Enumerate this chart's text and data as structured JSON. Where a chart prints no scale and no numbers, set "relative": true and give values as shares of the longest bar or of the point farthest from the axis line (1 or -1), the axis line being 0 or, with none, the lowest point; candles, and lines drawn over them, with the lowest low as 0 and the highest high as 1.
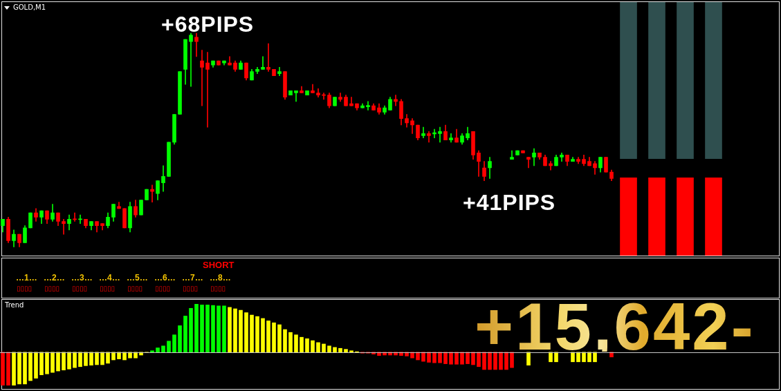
{
  "chart_data": [
    {
      "type": "candlestick",
      "title": "GOLD,M1",
      "relative": true,
      "categories": [
        null,
        null,
        null,
        null,
        null,
        null,
        null,
        null,
        null,
        null,
        null,
        null,
        null,
        null,
        null,
        null,
        null,
        null,
        null,
        null,
        null,
        null,
        null,
        null,
        null,
        null,
        null,
        null,
        null,
        null,
        null,
        null,
        null,
        null,
        null,
        null,
        null,
        null,
        null,
        null,
        null,
        null,
        null,
        null,
        null,
        null,
        null,
        null,
        null,
        null,
        null,
        null,
        null,
        null,
        null,
        null,
        null,
        null,
        null,
        null,
        null,
        null,
        null,
        null,
        null,
        null,
        null,
        null,
        null,
        null,
        null,
        null,
        null,
        null,
        null,
        null,
        null,
        null,
        null,
        null,
        null,
        null,
        null,
        null,
        null,
        null,
        null,
        null,
        null,
        null,
        null,
        null,
        null,
        null,
        null,
        null,
        null,
        null,
        null,
        null,
        null,
        null,
        null,
        null,
        null,
        null,
        null,
        null,
        null,
        null,
        null
      ],
      "ohlc": [
        [
          0.1,
          0.13,
          0.07,
          0.13
        ],
        [
          0.13,
          0.14,
          0.02,
          0.03
        ],
        [
          0.03,
          0.08,
          0,
          0.06
        ],
        [
          0.06,
          0.06,
          0,
          0.02
        ],
        [
          0.02,
          0.1,
          0.02,
          0.09
        ],
        [
          0.09,
          0.16,
          0.09,
          0.16
        ],
        [
          0.16,
          0.18,
          0.12,
          0.14
        ],
        [
          0.14,
          0.17,
          0.11,
          0.17
        ],
        [
          0.17,
          0.17,
          0.11,
          0.13
        ],
        [
          0.13,
          0.2,
          0.12,
          0.16
        ],
        [
          0.16,
          0.16,
          0.1,
          0.12
        ],
        [
          0.12,
          0.13,
          0.06,
          0.11
        ],
        [
          0.11,
          0.15,
          0.08,
          0.13
        ],
        [
          0.132,
          0.16,
          0.12,
          0.128
        ],
        [
          0.128,
          0.15,
          0.11,
          0.132
        ],
        [
          0.13,
          0.13,
          0.09,
          0.1
        ],
        [
          0.1,
          0.12,
          0.08,
          0.12
        ],
        [
          0.12,
          0.12,
          0.07,
          0.1
        ],
        [
          0.11,
          0.11,
          0.08,
          0.1
        ],
        [
          0.1,
          0.16,
          0.09,
          0.14
        ],
        [
          0.14,
          0.2,
          0.12,
          0.2
        ],
        [
          0.19,
          0.21,
          0.18,
          0.18
        ],
        [
          0.18,
          0.18,
          0.09,
          0.09
        ],
        [
          0.09,
          0.21,
          0.07,
          0.19
        ],
        [
          0.19,
          0.22,
          0.14,
          0.15
        ],
        [
          0.15,
          0.22,
          0.15,
          0.22
        ],
        [
          0.22,
          0.27,
          0.22,
          0.27
        ],
        [
          0.27,
          0.29,
          0.21,
          0.26
        ],
        [
          0.25,
          0.31,
          0.22,
          0.31
        ],
        [
          0.3,
          0.38,
          0.26,
          0.33
        ],
        [
          0.33,
          0.49,
          0.33,
          0.49
        ],
        [
          0.49,
          0.62,
          0.48,
          0.62
        ],
        [
          0.62,
          0.82,
          0.62,
          0.82
        ],
        [
          0.83,
          0.97,
          0.76,
          0.97
        ],
        [
          0.96,
          1.0,
          0.75,
          0.99
        ],
        [
          0.98,
          1.0,
          0.89,
          0.96
        ],
        [
          0.87,
          0.92,
          0.66,
          0.84
        ],
        [
          0.86,
          0.91,
          0.56,
          0.83
        ],
        [
          0.85,
          0.87,
          0.84,
          0.87
        ],
        [
          0.87,
          0.87,
          0.85,
          0.85
        ],
        [
          0.86,
          0.87,
          0.85,
          0.87
        ],
        [
          0.86,
          0.89,
          0.85,
          0.85
        ],
        [
          0.86,
          0.87,
          0.82,
          0.83
        ],
        [
          0.83,
          0.87,
          0.83,
          0.86
        ],
        [
          0.86,
          0.86,
          0.78,
          0.79
        ],
        [
          0.78,
          0.83,
          0.78,
          0.82
        ],
        [
          0.82,
          0.84,
          0.81,
          0.83
        ],
        [
          0.83,
          0.89,
          0.83,
          0.84
        ],
        [
          0.84,
          0.95,
          0.82,
          0.83
        ],
        [
          0.83,
          0.83,
          0.8,
          0.8
        ],
        [
          0.81,
          0.84,
          0.8,
          0.82
        ],
        [
          0.82,
          0.82,
          0.69,
          0.7
        ],
        [
          0.71,
          0.73,
          0.71,
          0.73
        ],
        [
          0.72,
          0.73,
          0.68,
          0.73
        ],
        [
          0.73,
          0.75,
          0.72,
          0.72
        ],
        [
          0.71,
          0.73,
          0.71,
          0.73
        ],
        [
          0.73,
          0.76,
          0.72,
          0.72
        ],
        [
          0.72,
          0.74,
          0.7,
          0.71
        ],
        [
          0.712,
          0.72,
          0.69,
          0.708
        ],
        [
          0.71,
          0.72,
          0.65,
          0.66
        ],
        [
          0.66,
          0.7,
          0.66,
          0.7
        ],
        [
          0.7,
          0.72,
          0.68,
          0.69
        ],
        [
          0.7,
          0.71,
          0.66,
          0.66
        ],
        [
          0.67,
          0.7,
          0.66,
          0.66
        ],
        [
          0.67,
          0.67,
          0.64,
          0.65
        ],
        [
          0.65,
          0.67,
          0.65,
          0.66
        ],
        [
          0.655,
          0.68,
          0.64,
          0.662
        ],
        [
          0.66,
          0.67,
          0.64,
          0.64
        ],
        [
          0.65,
          0.67,
          0.62,
          0.63
        ],
        [
          0.63,
          0.66,
          0.62,
          0.65
        ],
        [
          0.64,
          0.7,
          0.64,
          0.69
        ],
        [
          0.69,
          0.71,
          0.66,
          0.68
        ],
        [
          0.68,
          0.69,
          0.57,
          0.6
        ],
        [
          0.6,
          0.62,
          0.56,
          0.58
        ],
        [
          0.59,
          0.6,
          0.53,
          0.57
        ],
        [
          0.57,
          0.57,
          0.5,
          0.51
        ],
        [
          0.52,
          0.56,
          0.51,
          0.53
        ],
        [
          0.53,
          0.54,
          0.49,
          0.52
        ],
        [
          0.528,
          0.55,
          0.51,
          0.534
        ],
        [
          0.53,
          0.56,
          0.49,
          0.54
        ],
        [
          0.54,
          0.57,
          0.5,
          0.5
        ],
        [
          0.5,
          0.53,
          0.49,
          0.51
        ],
        [
          0.51,
          0.55,
          0.49,
          0.49
        ],
        [
          0.49,
          0.53,
          0.48,
          0.52
        ],
        [
          0.51,
          0.56,
          0.5,
          0.53
        ],
        [
          0.54,
          0.54,
          0.41,
          0.43
        ],
        [
          0.44,
          0.45,
          0.33,
          0.4
        ],
        [
          0.37,
          0.4,
          0.31,
          0.33
        ],
        [
          0.37,
          0.42,
          0.32,
          0.4
        ],
        null,
        null,
        null,
        [
          0.41,
          0.45,
          0.41,
          0.42
        ],
        [
          0.43,
          0.45,
          0.43,
          0.45
        ],
        [
          0.45,
          0.45,
          0.44,
          0.44
        ],
        [
          0.42,
          0.42,
          0.37,
          0.41
        ],
        [
          0.42,
          0.46,
          0.38,
          0.44
        ],
        [
          0.44,
          0.44,
          0.41,
          0.42
        ],
        [
          0.42,
          0.43,
          0.38,
          0.38
        ],
        [
          0.39,
          0.4,
          0.36,
          0.38
        ],
        [
          0.38,
          0.43,
          0.38,
          0.42
        ],
        [
          0.42,
          0.44,
          0.4,
          0.43
        ],
        [
          0.43,
          0.43,
          0.38,
          0.4
        ],
        [
          0.4,
          0.42,
          0.4,
          0.41
        ],
        [
          0.41,
          0.42,
          0.39,
          0.4
        ],
        [
          0.41,
          0.43,
          0.38,
          0.39
        ],
        [
          0.4,
          0.42,
          0.38,
          0.38
        ],
        [
          0.39,
          0.4,
          0.34,
          0.37
        ],
        [
          0.37,
          0.42,
          0.35,
          0.42
        ],
        [
          0.42,
          0.42,
          0.35,
          0.35
        ],
        [
          0.35,
          0.36,
          0.31,
          0.32
        ]
      ],
      "colors": [
        "#00ff00",
        "#ff0000",
        "#00ff00",
        "#ff0000",
        "#00ff00",
        "#00ff00",
        "#ff0000",
        "#00ff00",
        "#ff0000",
        "#00ff00",
        "#ff0000",
        "#ff0000",
        "#00ff00",
        "#ff0000",
        "#00ff00",
        "#ff0000",
        "#00ff00",
        "#ff0000",
        "#ff0000",
        "#00ff00",
        "#00ff00",
        "#ff0000",
        "#ff0000",
        "#00ff00",
        "#ff0000",
        "#00ff00",
        "#00ff00",
        "#ff0000",
        "#00ff00",
        "#00ff00",
        "#00ff00",
        "#00ff00",
        "#00ff00",
        "#00ff00",
        "#00ff00",
        "#ff0000",
        "#ff0000",
        "#ff0000",
        "#00ff00",
        "#ff0000",
        "#00ff00",
        "#ff0000",
        "#ff0000",
        "#00ff00",
        "#ff0000",
        "#00ff00",
        "#00ff00",
        "#00ff00",
        "#ff0000",
        "#ff0000",
        "#00ff00",
        "#ff0000",
        "#00ff00",
        "#00ff00",
        "#ff0000",
        "#00ff00",
        "#ff0000",
        "#ff0000",
        "#ff0000",
        "#ff0000",
        "#00ff00",
        "#ff0000",
        "#ff0000",
        "#ff0000",
        "#ff0000",
        "#00ff00",
        "#00ff00",
        "#ff0000",
        "#ff0000",
        "#00ff00",
        "#00ff00",
        "#ff0000",
        "#ff0000",
        "#ff0000",
        "#ff0000",
        "#ff0000",
        "#00ff00",
        "#ff0000",
        "#00ff00",
        "#00ff00",
        "#ff0000",
        "#00ff00",
        "#ff0000",
        "#00ff00",
        "#00ff00",
        "#ff0000",
        "#ff0000",
        "#ff0000",
        "#00ff00",
        null,
        null,
        null,
        "#00ff00",
        "#00ff00",
        "#ff0000",
        "#ff0000",
        "#00ff00",
        "#ff0000",
        "#ff0000",
        "#ff0000",
        "#00ff00",
        "#00ff00",
        "#ff0000",
        "#00ff00",
        "#ff0000",
        "#ff0000",
        "#ff0000",
        "#ff0000",
        "#00ff00",
        "#ff0000",
        "#ff0000"
      ],
      "annotations": [
        "+68PIPS",
        "+41PIPS"
      ]
    },
    {
      "type": "bar",
      "relative": true,
      "categories": [
        null,
        null,
        null,
        null
      ],
      "color": "#2f4f4f",
      "values": [
        1,
        1,
        1,
        1
      ]
    },
    {
      "type": "bar",
      "relative": true,
      "categories": [
        null,
        null,
        null,
        null
      ],
      "color": "#ff0000",
      "values": [
        1,
        1,
        1,
        1
      ]
    },
    {
      "type": "other",
      "annotations": [
        "SHORT",
        "…1… …2… …3… …4… …5… …6… …7… …8…",
        "▯▯▯▯ ▯▯▯▯ ▯▯▯▯ ▯▯▯▯ ▯▯▯▯ ▯▯▯▯ ▯▯▯▯ ▯▯▯▯"
      ]
    },
    {
      "type": "bar",
      "title": "Trend",
      "relative": true,
      "categories": [
        null,
        null,
        null,
        null,
        null,
        null,
        null,
        null,
        null,
        null,
        null,
        null,
        null,
        null,
        null,
        null,
        null,
        null,
        null,
        null,
        null,
        null,
        null,
        null,
        null,
        null,
        null,
        null,
        null,
        null,
        null,
        null,
        null,
        null,
        null,
        null,
        null,
        null,
        null,
        null,
        null,
        null,
        null,
        null,
        null,
        null,
        null,
        null,
        null,
        null,
        null,
        null,
        null,
        null,
        null,
        null,
        null,
        null,
        null,
        null,
        null,
        null,
        null,
        null,
        null,
        null,
        null,
        null,
        null,
        null,
        null,
        null,
        null,
        null,
        null,
        null,
        null,
        null,
        null,
        null,
        null,
        null,
        null,
        null,
        null,
        null,
        null,
        null,
        null,
        null,
        null,
        null,
        null,
        null,
        null,
        null,
        null,
        null,
        null,
        null,
        null,
        null,
        null,
        null,
        null,
        null,
        null,
        null,
        null,
        null,
        null
      ],
      "values": [
        -0.69,
        -0.69,
        -0.69,
        -0.66,
        -0.66,
        -0.59,
        -0.54,
        -0.47,
        -0.45,
        -0.42,
        -0.39,
        -0.37,
        -0.35,
        -0.32,
        -0.3,
        -0.28,
        -0.27,
        -0.26,
        -0.26,
        -0.23,
        -0.16,
        -0.14,
        -0.16,
        -0.12,
        -0.12,
        -0.06,
        0,
        0.03,
        0.09,
        0.13,
        0.23,
        0.36,
        0.55,
        0.75,
        0.91,
        1.0,
        0.98,
        0.98,
        0.97,
        0.96,
        0.96,
        0.93,
        0.9,
        0.87,
        0.82,
        0.77,
        0.74,
        0.7,
        0.65,
        0.61,
        0.57,
        0.47,
        0.41,
        0.36,
        0.31,
        0.28,
        0.24,
        0.2,
        0.17,
        0.13,
        0.1,
        0.08,
        0.06,
        0.03,
        0.01,
        -0.02,
        -0.02,
        -0.04,
        -0.07,
        -0.06,
        -0.06,
        -0.06,
        -0.07,
        -0.08,
        -0.12,
        -0.16,
        -0.19,
        -0.21,
        -0.22,
        -0.22,
        -0.24,
        -0.25,
        -0.25,
        -0.25,
        -0.24,
        -0.26,
        -0.3,
        -0.36,
        -0.36,
        -0.36,
        -0.36,
        -0.36,
        -0.32,
        null,
        null,
        -0.27,
        null,
        null,
        null,
        -0.2,
        -0.2,
        null,
        null,
        -0.2,
        -0.2,
        -0.2,
        -0.2,
        -0.2,
        null,
        null,
        -0.1
      ],
      "colors": [
        "#ff0000",
        "#ff0000",
        "#ffff00",
        "#ffff00",
        "#ffff00",
        "#ffff00",
        "#ffff00",
        "#ffff00",
        "#ffff00",
        "#ffff00",
        "#ffff00",
        "#ffff00",
        "#ffff00",
        "#ffff00",
        "#ffff00",
        "#ffff00",
        "#ffff00",
        "#ffff00",
        "#ffff00",
        "#ffff00",
        "#ffff00",
        "#ffff00",
        "#ffff00",
        "#ffff00",
        "#ffff00",
        "#ffff00",
        "#ffff00",
        "#00ff00",
        "#00ff00",
        "#00ff00",
        "#00ff00",
        "#00ff00",
        "#00ff00",
        "#00ff00",
        "#00ff00",
        "#00ff00",
        "#00ff00",
        "#00ff00",
        "#00ff00",
        "#00ff00",
        "#00ff00",
        "#ffff00",
        "#ffff00",
        "#ffff00",
        "#ffff00",
        "#ffff00",
        "#ffff00",
        "#ffff00",
        "#ffff00",
        "#ffff00",
        "#ffff00",
        "#ffff00",
        "#ffff00",
        "#ffff00",
        "#ffff00",
        "#ffff00",
        "#ffff00",
        "#ffff00",
        "#ffff00",
        "#ffff00",
        "#ffff00",
        "#ffff00",
        "#ffff00",
        "#ffff00",
        "#ffff00",
        "#ff0000",
        "#ff0000",
        "#ff0000",
        "#ff0000",
        "#ff0000",
        "#ff0000",
        "#ff0000",
        "#ff0000",
        "#ff0000",
        "#ff0000",
        "#ff0000",
        "#ff0000",
        "#ff0000",
        "#ff0000",
        "#ff0000",
        "#ff0000",
        "#ff0000",
        "#ff0000",
        "#ff0000",
        "#ff0000",
        "#ff0000",
        "#ff0000",
        "#ff0000",
        "#ff0000",
        "#ff0000",
        "#ff0000",
        "#ff0000",
        "#ff0000",
        null,
        null,
        "#ffff00",
        null,
        null,
        null,
        "#ffff00",
        "#ffff00",
        null,
        null,
        "#ffff00",
        "#ffff00",
        "#ffff00",
        "#ffff00",
        "#ffff00",
        null,
        null,
        "#ff0000"
      ],
      "annotations": [
        "+15,642-"
      ]
    }
  ]
}
